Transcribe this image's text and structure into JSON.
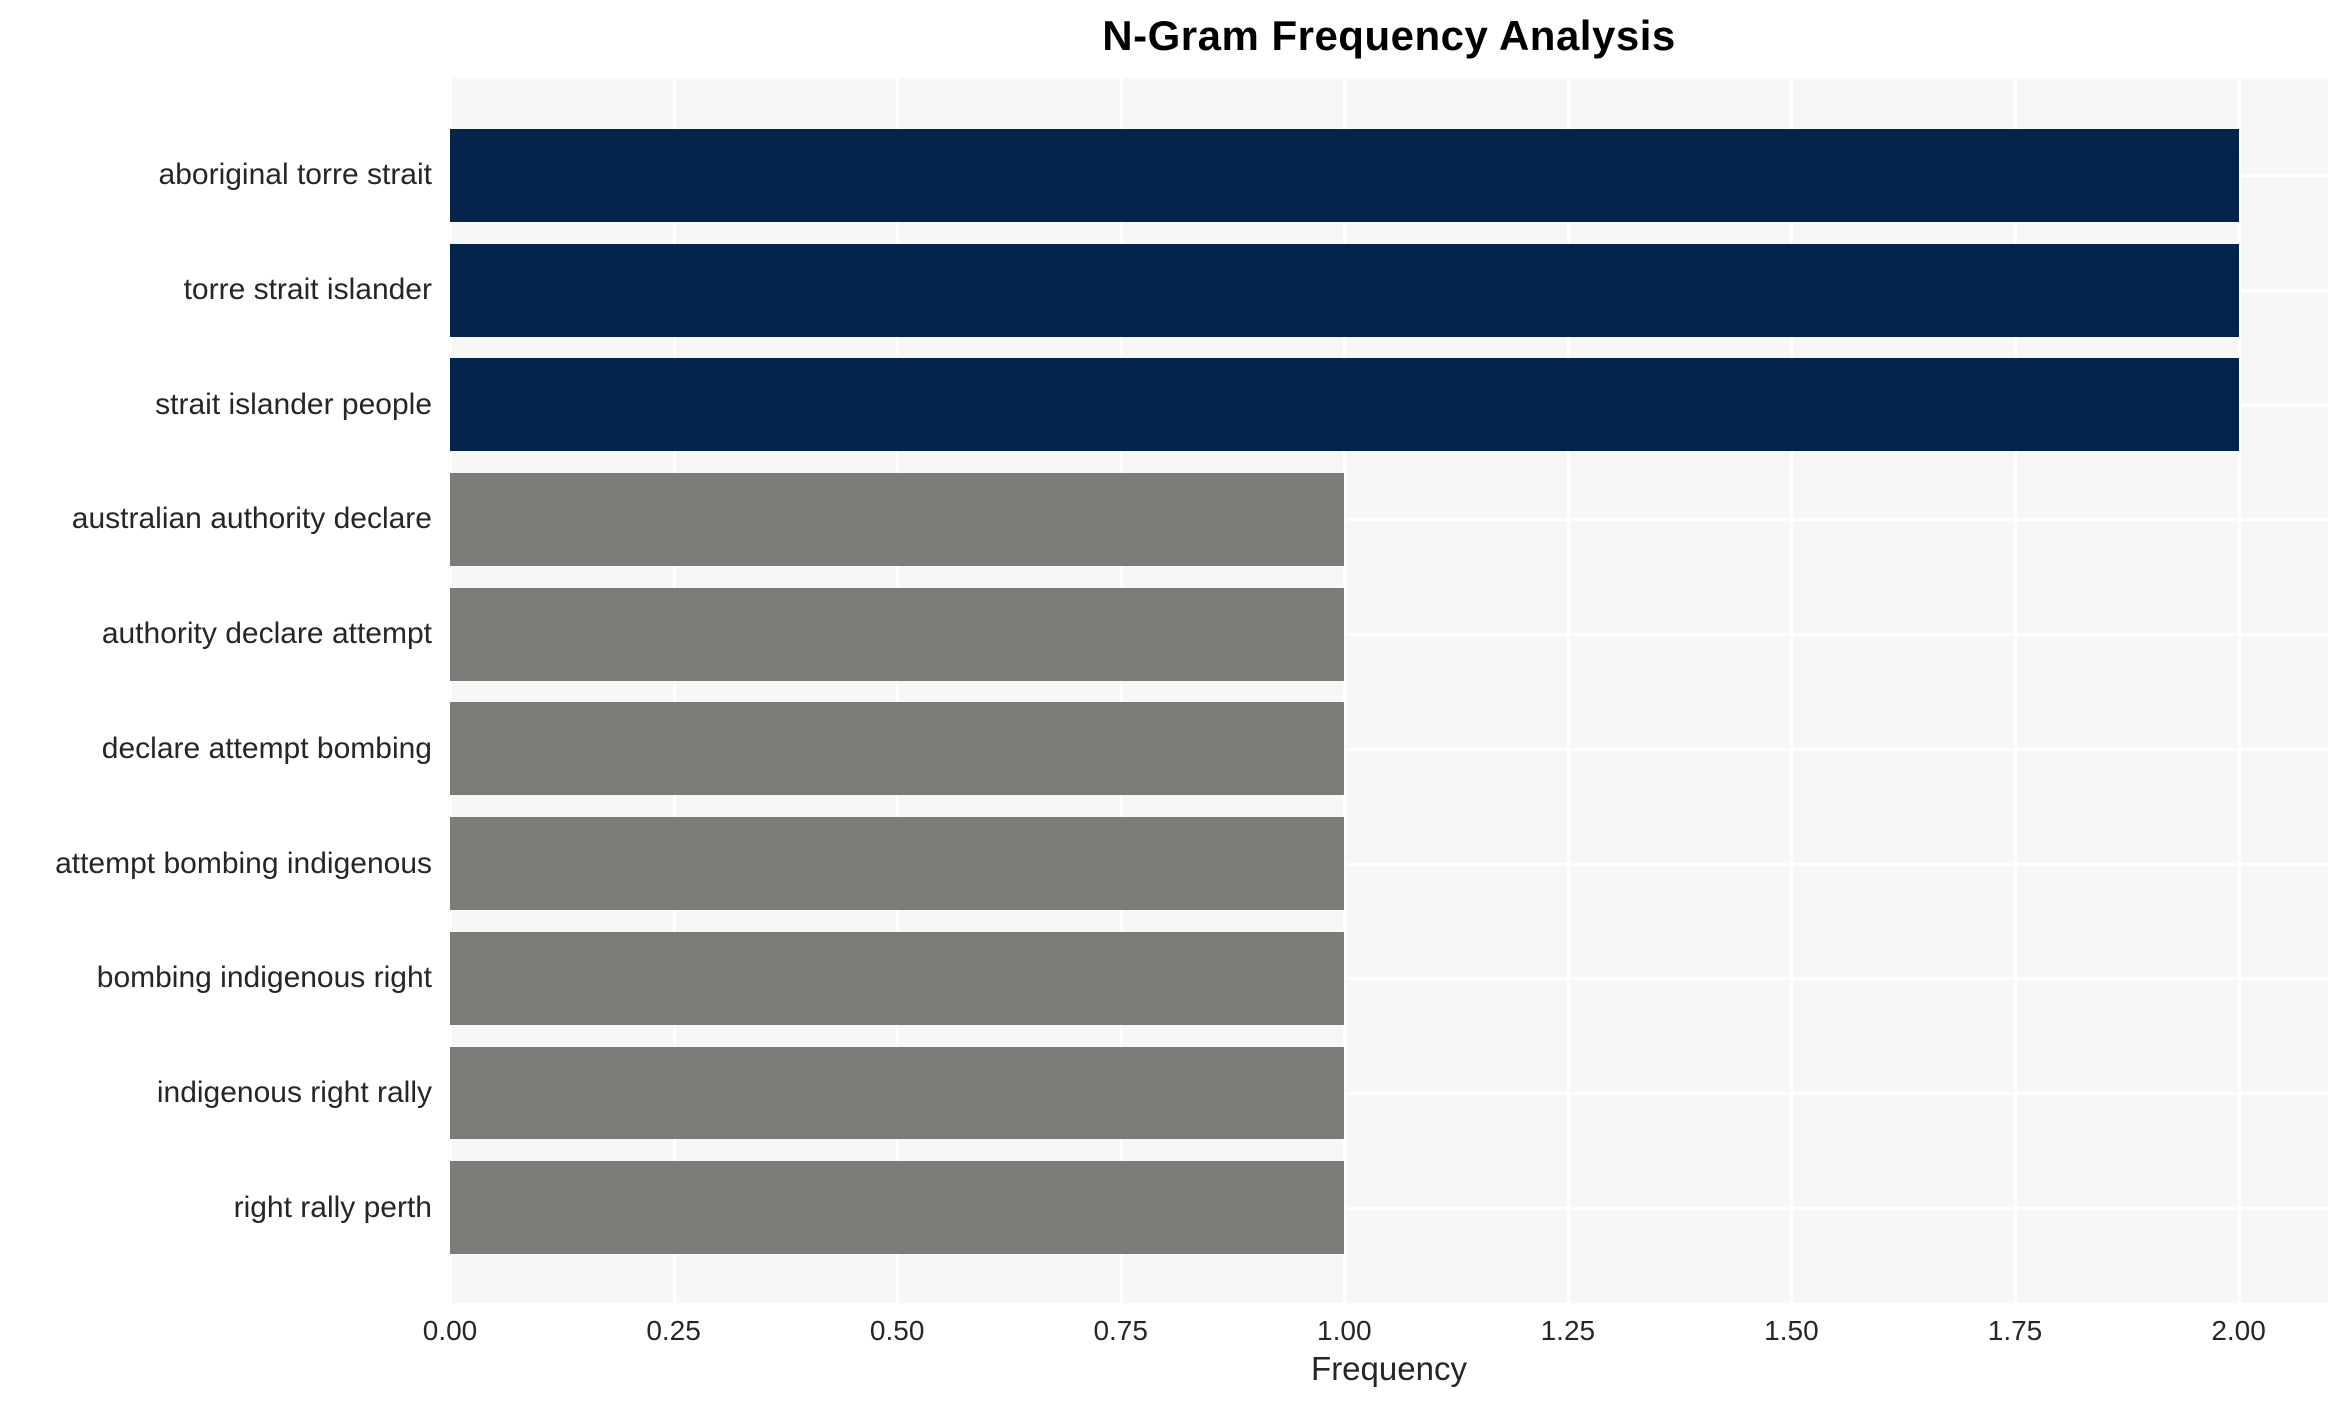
{
  "figure": {
    "background": "#ffffff"
  },
  "chart_data": {
    "type": "bar",
    "orientation": "horizontal",
    "title": "N-Gram Frequency Analysis",
    "xlabel": "Frequency",
    "ylabel": "",
    "categories": [
      "aboriginal torre strait",
      "torre strait islander",
      "strait islander people",
      "australian authority declare",
      "authority declare attempt",
      "declare attempt bombing",
      "attempt bombing indigenous",
      "bombing indigenous right",
      "indigenous right rally",
      "right rally perth"
    ],
    "values": [
      2,
      2,
      2,
      1,
      1,
      1,
      1,
      1,
      1,
      1
    ],
    "bar_colors": [
      "#03254c",
      "#03254c",
      "#03254c",
      "#7b7b78",
      "#7b7b78",
      "#7b7b78",
      "#7b7b78",
      "#7b7b78",
      "#7b7b78",
      "#7b7b78"
    ],
    "xlim": [
      0,
      2.1
    ],
    "xticks": {
      "values": [
        0,
        0.25,
        0.5,
        0.75,
        1.0,
        1.25,
        1.5,
        1.75,
        2.0
      ],
      "labels": [
        "0.00",
        "0.25",
        "0.50",
        "0.75",
        "1.00",
        "1.25",
        "1.50",
        "1.75",
        "2.00"
      ]
    },
    "grid": {
      "show": true,
      "color": "#ffffff",
      "plot_background": "#f7f7f7"
    },
    "legend": {
      "show": false
    },
    "text_color": "#262626",
    "title_color": "#000000"
  }
}
